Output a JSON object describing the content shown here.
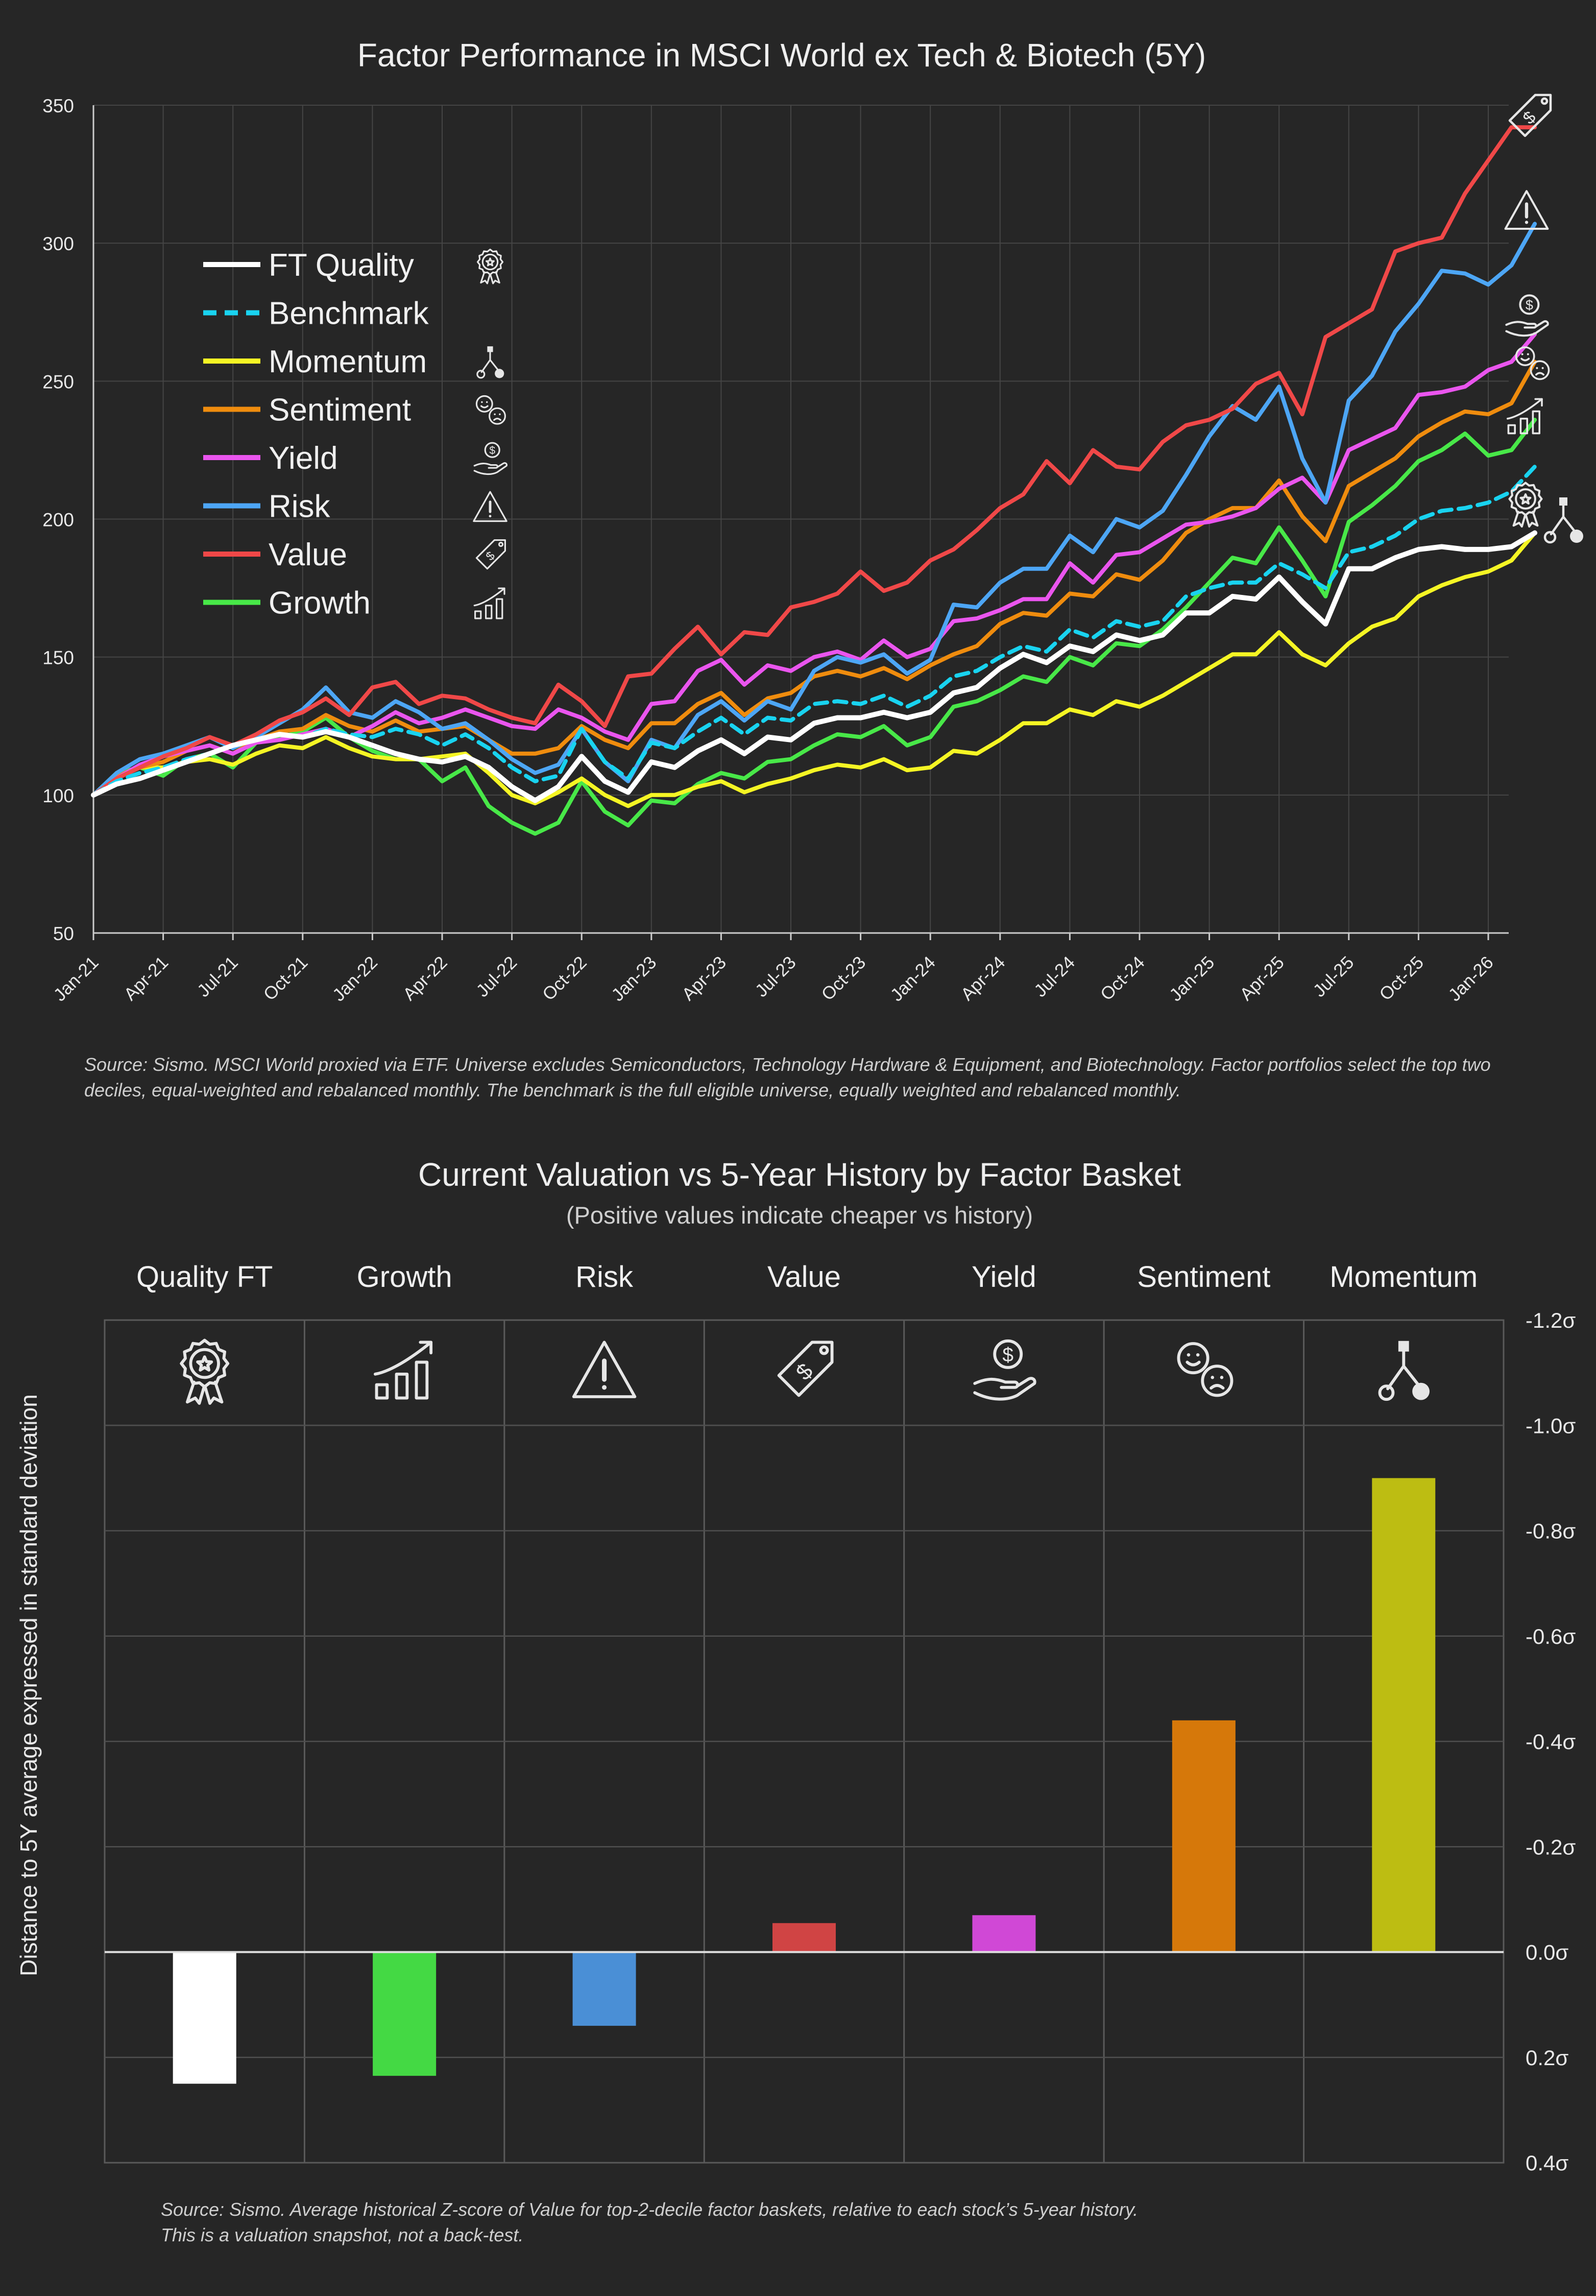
{
  "colors": {
    "background": "#262626",
    "grid": "#454545",
    "text": "#e8e8e8",
    "icon": "#e6e6e6",
    "ft_quality": "#ffffff",
    "benchmark": "#19d3f0",
    "momentum": "#f5f524",
    "sentiment": "#ef8c0e",
    "yield": "#ea55ee",
    "risk": "#4da6f5",
    "value": "#f04848",
    "growth": "#48e848"
  },
  "chart_data": [
    {
      "type": "line",
      "title": "Factor Performance in MSCI World ex Tech & Biotech (5Y)",
      "xlabel": "",
      "ylabel": "",
      "ylim": [
        50,
        350
      ],
      "yticks": [
        "50",
        "100",
        "150",
        "200",
        "250",
        "300",
        "350"
      ],
      "x_ticks": [
        "Jan-21",
        "Apr-21",
        "Jul-21",
        "Oct-21",
        "Jan-22",
        "Apr-22",
        "Jul-22",
        "Oct-22",
        "Jan-23",
        "Apr-23",
        "Jul-23",
        "Oct-23",
        "Jan-24",
        "Apr-24",
        "Jul-24",
        "Oct-24",
        "Jan-25",
        "Apr-25",
        "Jul-25",
        "Oct-25",
        "Jan-26"
      ],
      "grid": true,
      "legend_position": "top-left",
      "series": [
        {
          "name": "FT Quality",
          "key": "ft_quality",
          "icon": "rosette-icon",
          "dashed": false,
          "values": [
            100,
            104,
            106,
            109,
            112,
            115,
            118,
            120,
            122,
            121,
            123,
            121,
            118,
            115,
            113,
            112,
            114,
            110,
            103,
            98,
            103,
            114,
            105,
            101,
            112,
            110,
            116,
            120,
            115,
            121,
            120,
            126,
            128,
            128,
            130,
            128,
            130,
            137,
            139,
            146,
            151,
            148,
            154,
            152,
            158,
            156,
            158,
            166,
            166,
            172,
            171,
            179,
            170,
            162,
            182,
            182,
            186,
            189,
            190,
            189,
            189,
            190,
            195
          ]
        },
        {
          "name": "Benchmark",
          "key": "benchmark",
          "icon": "",
          "dashed": true,
          "values": [
            100,
            105,
            108,
            110,
            113,
            115,
            118,
            120,
            122,
            121,
            124,
            122,
            121,
            124,
            122,
            118,
            122,
            117,
            110,
            105,
            107,
            124,
            112,
            106,
            119,
            117,
            123,
            128,
            122,
            128,
            127,
            133,
            134,
            133,
            136,
            132,
            136,
            143,
            145,
            150,
            154,
            152,
            160,
            157,
            163,
            161,
            163,
            172,
            175,
            177,
            177,
            184,
            180,
            175,
            188,
            190,
            194,
            200,
            203,
            204,
            206,
            210,
            219
          ]
        },
        {
          "name": "Momentum",
          "key": "momentum",
          "icon": "tree-icon",
          "dashed": false,
          "values": [
            100,
            106,
            110,
            110,
            112,
            113,
            111,
            115,
            118,
            117,
            121,
            117,
            114,
            113,
            113,
            114,
            115,
            108,
            100,
            97,
            101,
            106,
            100,
            96,
            100,
            100,
            103,
            105,
            101,
            104,
            106,
            109,
            111,
            110,
            113,
            109,
            110,
            116,
            115,
            120,
            126,
            126,
            131,
            129,
            134,
            132,
            136,
            141,
            146,
            151,
            151,
            159,
            151,
            147,
            155,
            161,
            164,
            172,
            176,
            179,
            181,
            185,
            195
          ]
        },
        {
          "name": "Sentiment",
          "key": "sentiment",
          "icon": "faces-icon",
          "dashed": false,
          "values": [
            100,
            107,
            110,
            112,
            116,
            118,
            115,
            120,
            123,
            124,
            129,
            125,
            123,
            127,
            123,
            124,
            125,
            120,
            115,
            115,
            117,
            125,
            120,
            117,
            126,
            126,
            133,
            137,
            129,
            135,
            137,
            143,
            145,
            143,
            146,
            142,
            147,
            151,
            154,
            162,
            166,
            165,
            173,
            172,
            180,
            178,
            185,
            195,
            200,
            204,
            204,
            214,
            201,
            192,
            212,
            217,
            222,
            230,
            235,
            239,
            238,
            242,
            257
          ]
        },
        {
          "name": "Yield",
          "key": "yield",
          "icon": "coin-hand-icon",
          "dashed": false,
          "values": [
            100,
            106,
            111,
            114,
            116,
            118,
            115,
            119,
            120,
            122,
            124,
            121,
            125,
            130,
            126,
            128,
            131,
            128,
            125,
            124,
            131,
            128,
            123,
            120,
            133,
            134,
            145,
            149,
            140,
            147,
            145,
            150,
            152,
            149,
            156,
            150,
            153,
            163,
            164,
            167,
            171,
            171,
            184,
            177,
            187,
            188,
            193,
            198,
            199,
            201,
            204,
            211,
            215,
            206,
            225,
            229,
            233,
            245,
            246,
            248,
            254,
            257,
            267
          ]
        },
        {
          "name": "Risk",
          "key": "risk",
          "icon": "warning-icon",
          "dashed": false,
          "values": [
            100,
            108,
            113,
            115,
            118,
            121,
            117,
            121,
            126,
            131,
            139,
            130,
            128,
            134,
            130,
            124,
            126,
            120,
            113,
            108,
            111,
            124,
            112,
            105,
            120,
            117,
            129,
            134,
            127,
            134,
            131,
            145,
            150,
            148,
            151,
            144,
            149,
            169,
            168,
            177,
            182,
            182,
            194,
            188,
            200,
            197,
            203,
            216,
            230,
            241,
            236,
            248,
            222,
            206,
            243,
            252,
            268,
            278,
            290,
            289,
            285,
            292,
            307
          ]
        },
        {
          "name": "Value",
          "key": "value",
          "icon": "price-tag-icon",
          "dashed": false,
          "values": [
            100,
            106,
            110,
            114,
            117,
            121,
            118,
            122,
            127,
            130,
            135,
            129,
            139,
            141,
            133,
            136,
            135,
            131,
            128,
            126,
            140,
            134,
            125,
            143,
            144,
            153,
            161,
            151,
            159,
            158,
            168,
            170,
            173,
            181,
            174,
            177,
            185,
            189,
            196,
            204,
            209,
            221,
            213,
            225,
            219,
            218,
            228,
            234,
            236,
            240,
            249,
            253,
            238,
            266,
            271,
            276,
            297,
            300,
            302,
            318,
            330,
            342,
            342
          ]
        },
        {
          "name": "Growth",
          "key": "growth",
          "icon": "growth-icon",
          "dashed": false,
          "values": [
            100,
            108,
            110,
            107,
            113,
            115,
            110,
            119,
            121,
            123,
            128,
            121,
            116,
            113,
            113,
            105,
            110,
            96,
            90,
            86,
            90,
            105,
            94,
            89,
            98,
            97,
            104,
            108,
            106,
            112,
            113,
            118,
            122,
            121,
            125,
            118,
            121,
            132,
            134,
            138,
            143,
            141,
            150,
            147,
            155,
            154,
            160,
            168,
            177,
            186,
            184,
            197,
            185,
            172,
            199,
            205,
            212,
            221,
            225,
            231,
            223,
            225,
            236
          ]
        }
      ]
    },
    {
      "type": "bar",
      "title": "Current Valuation vs 5-Year History by Factor Basket",
      "subtitle": "(Positive values indicate cheaper vs history)",
      "ylabel": "Distance to 5Y average expressed in standard deviation",
      "ylim": [
        -1.2,
        0.4
      ],
      "y_inverted": true,
      "yticks": [
        "-1.2σ",
        "-1.0σ",
        "-0.8σ",
        "-0.6σ",
        "-0.4σ",
        "-0.2σ",
        "0.0σ",
        "0.2σ",
        "0.4σ"
      ],
      "categories": [
        "Quality FT",
        "Growth",
        "Risk",
        "Value",
        "Yield",
        "Sentiment",
        "Momentum"
      ],
      "icons": [
        "rosette-icon",
        "growth-icon",
        "warning-icon",
        "price-tag-icon",
        "coin-hand-icon",
        "faces-icon",
        "tree-icon"
      ],
      "values": [
        0.25,
        0.235,
        0.14,
        -0.055,
        -0.07,
        -0.44,
        -0.9
      ],
      "bar_colors": [
        "#ffffff",
        "#44d944",
        "#4a8fd6",
        "#d04444",
        "#d048d6",
        "#d6780a",
        "#bdbd12"
      ]
    }
  ],
  "source_notes": {
    "chart1": "Source: Sismo. MSCI World proxied via ETF. Universe excludes Semiconductors, Technology Hardware & Equipment, and Biotechnology. Factor portfolios select the top two deciles, equal-weighted and rebalanced monthly. The benchmark is the full eligible universe, equally weighted and rebalanced monthly.",
    "chart2_line1": "Source: Sismo. Average historical Z-score of Value for top-2-decile factor baskets, relative to each stock’s 5-year history.",
    "chart2_line2": "This is a valuation snapshot, not a back-test."
  }
}
